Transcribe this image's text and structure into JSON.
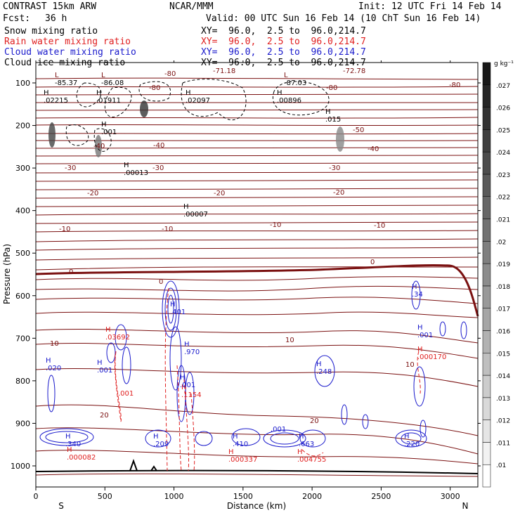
{
  "header": {
    "model": "CONTRAST 15km ARW",
    "org": "NCAR/MMM",
    "init": "Init: 12 UTC Fri 14 Feb 14",
    "fcst_label": "Fcst:",
    "fcst_value": "36 h",
    "valid": "Valid: 00 UTC Sun 16 Feb 14 (10 ChT Sun 16 Feb 14)",
    "fields": [
      {
        "name": "Snow mixing ratio",
        "xy": "XY=  96.0,  2.5 to  96.0,214.7",
        "color": "#000000"
      },
      {
        "name": "Rain water mixing ratio",
        "xy": "XY=  96.0,  2.5 to  96.0,214.7",
        "color": "#e02020"
      },
      {
        "name": "Cloud water mixing ratio",
        "xy": "XY=  96.0,  2.5 to  96.0,214.7",
        "color": "#1a1acc"
      },
      {
        "name": "Cloud ice mixing ratio",
        "xy": "XY=  96.0,  2.5 to  96.0,214.7",
        "color": "#000000"
      }
    ]
  },
  "chart_data": {
    "type": "cross-section",
    "xlabel": "Distance (km)",
    "ylabel": "Pressure (hPa)",
    "xlim": [
      0,
      3200
    ],
    "ylim": [
      1050,
      50
    ],
    "x_ticks": [
      0,
      500,
      1000,
      1500,
      2000,
      2500,
      3000
    ],
    "y_ticks": [
      100,
      200,
      300,
      400,
      500,
      600,
      700,
      800,
      900,
      1000
    ],
    "endpoints": {
      "left": "S",
      "right": "N"
    },
    "colorbar": {
      "unit": "g kg⁻¹",
      "ticks": [
        ".01",
        ".011",
        ".012",
        ".013",
        ".014",
        ".015",
        ".016",
        ".017",
        ".018",
        ".019",
        ".02",
        ".021",
        ".022",
        ".023",
        ".024",
        ".025",
        ".026",
        ".027"
      ]
    },
    "temperature_contours": {
      "color": "#7a1010",
      "labels": [
        "-80",
        "-71.18",
        "-72.78",
        "-80",
        "-80",
        "-80",
        "-50",
        "-40",
        "-40",
        "-40",
        "-30",
        "-30",
        "-30",
        "-20",
        "-20",
        "-20",
        "-10",
        "-10",
        "-10",
        "-10",
        "0",
        "0",
        "0",
        "10",
        "10",
        "10",
        "20",
        "20"
      ]
    },
    "snow_extrema": [
      {
        "label": "L",
        "value": "-85.37"
      },
      {
        "label": "L",
        "value": "-86.08"
      },
      {
        "label": "L",
        "value": "-87.03"
      },
      {
        "label": "H",
        "value": ".02215"
      },
      {
        "label": "H",
        "value": ".01911"
      },
      {
        "label": "H",
        "value": ".02097"
      },
      {
        "label": "H",
        "value": ".00896"
      },
      {
        "label": "H",
        "value": ".015"
      },
      {
        "label": "H",
        "value": ".001"
      },
      {
        "label": "H",
        "value": ".00013"
      },
      {
        "label": "H",
        "value": ".00007"
      }
    ],
    "rain_extrema": [
      {
        "label": "H",
        "value": ".03692"
      },
      {
        "label": "H",
        "value": ".1154"
      },
      {
        "label": "H",
        "value": ".000082"
      },
      {
        "label": "H",
        "value": ".000337"
      },
      {
        "label": "H",
        "value": ".004755"
      },
      {
        "label": "H",
        "value": ".000170"
      },
      {
        "label": "",
        "value": ".001"
      }
    ],
    "cloud_extrema": [
      {
        "label": "H",
        "value": ".020"
      },
      {
        "label": "H",
        "value": ".001"
      },
      {
        "label": "H",
        "value": ".401"
      },
      {
        "label": "H",
        "value": ".970"
      },
      {
        "label": "H",
        "value": ".001"
      },
      {
        "label": "H",
        "value": ".248"
      },
      {
        "label": "H",
        "value": ".34"
      },
      {
        "label": "H",
        "value": ".001"
      },
      {
        "label": "H",
        "value": ".340"
      },
      {
        "label": "H",
        "value": ".209"
      },
      {
        "label": "H",
        "value": ".410"
      },
      {
        "label": "H",
        "value": ".663"
      },
      {
        "label": "H",
        "value": ".220"
      },
      {
        "label": "",
        "value": ".001"
      }
    ]
  }
}
